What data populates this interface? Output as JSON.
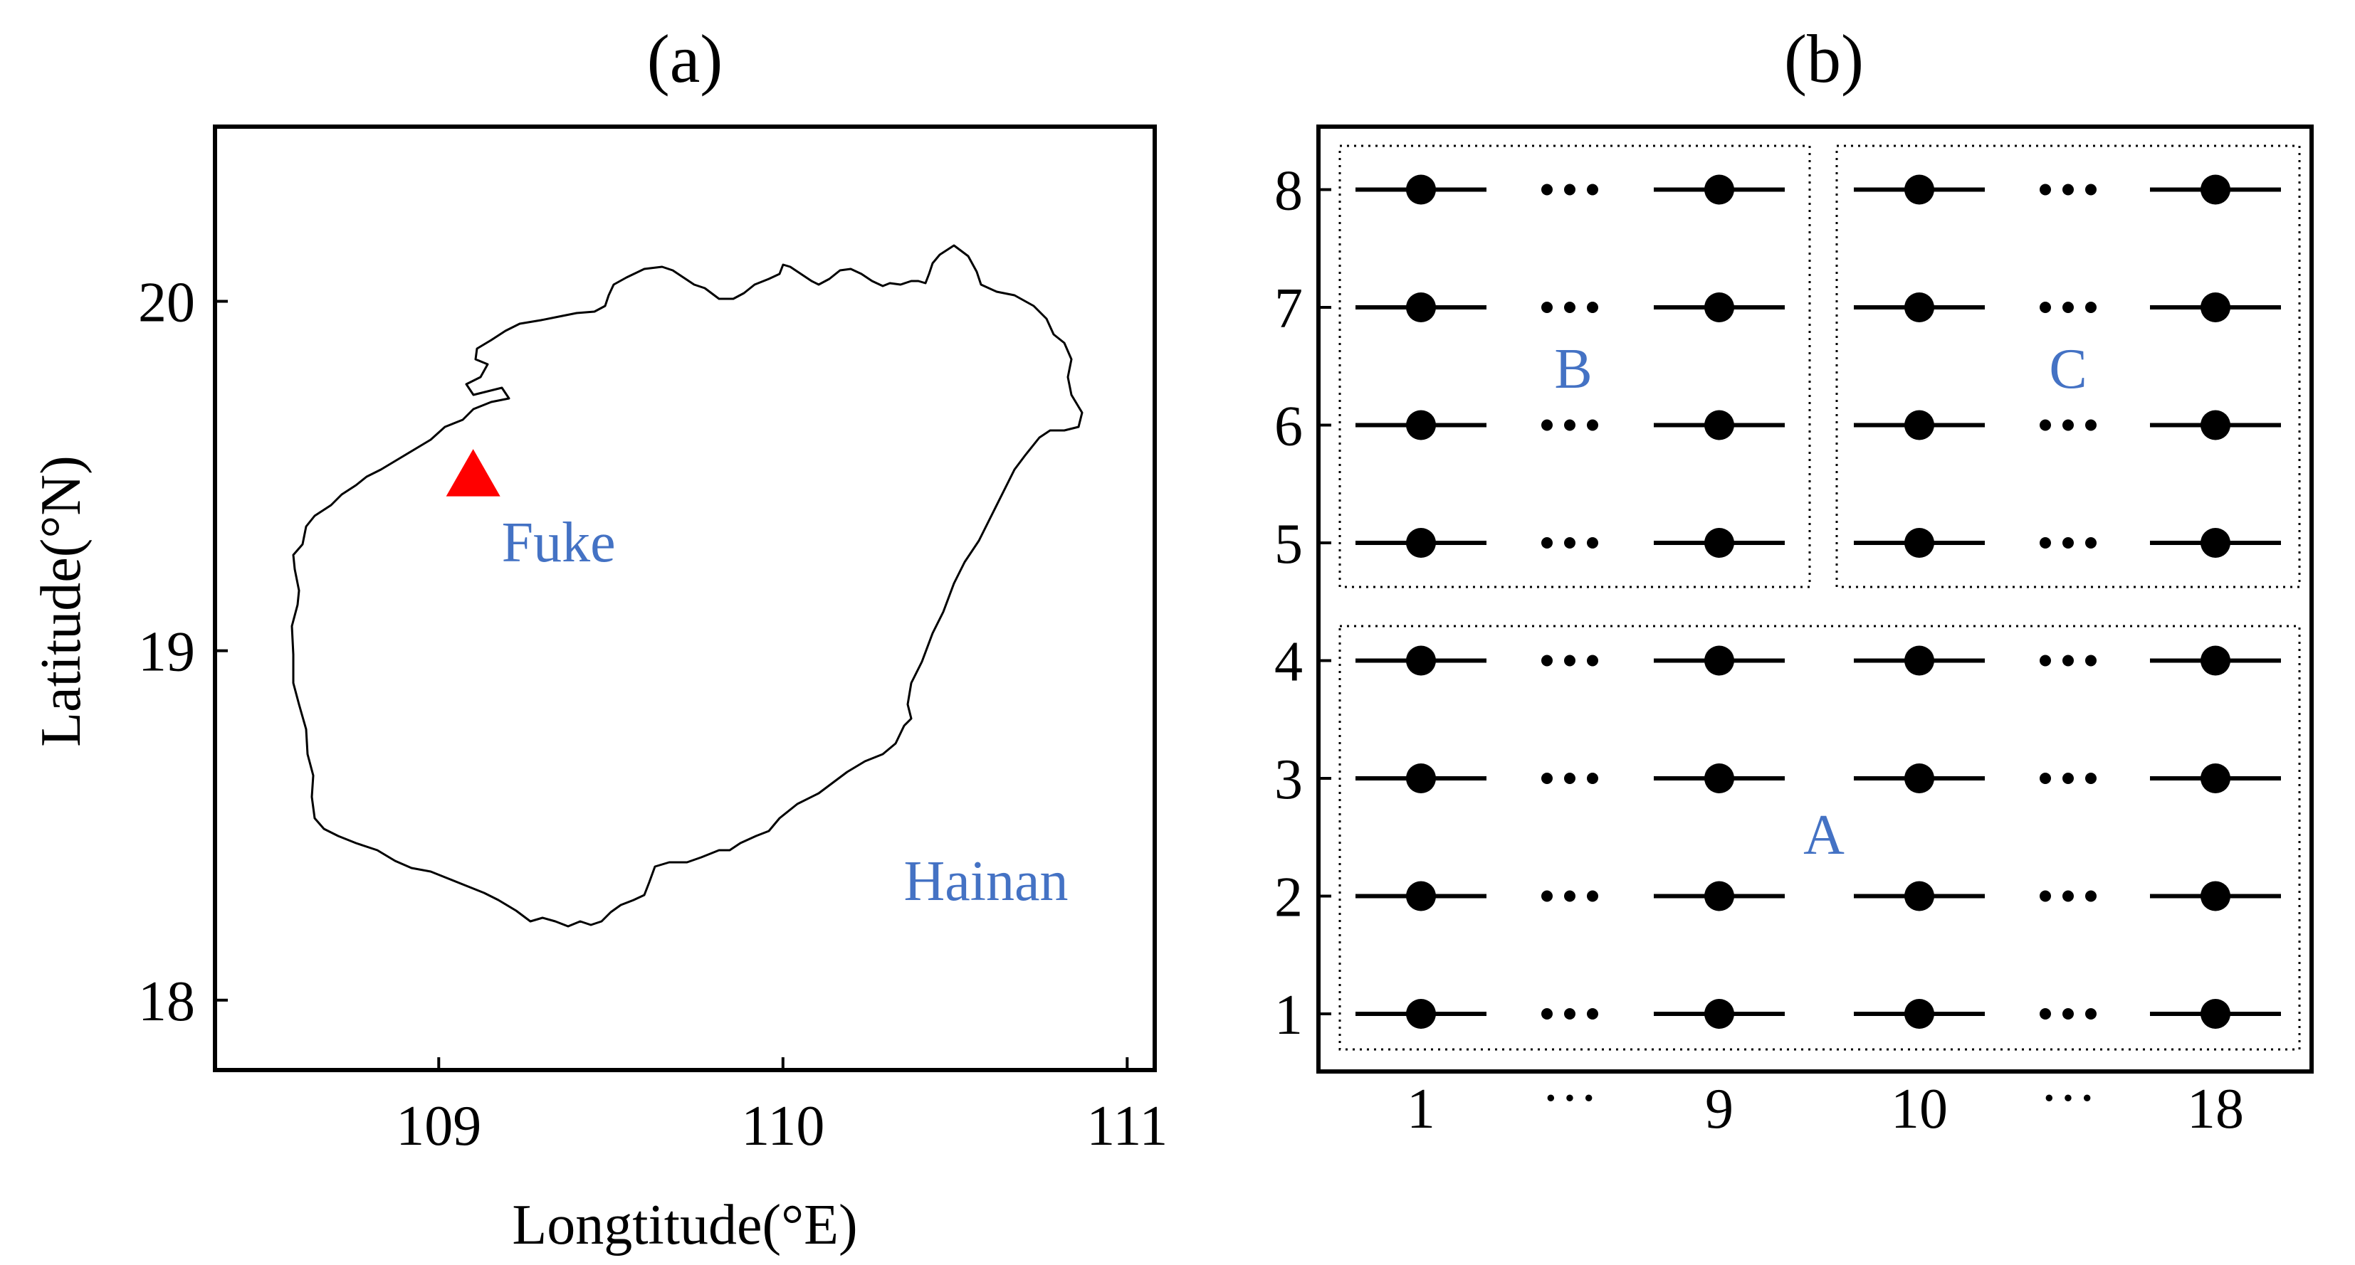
{
  "panel_a": {
    "title": "(a)",
    "x_axis_label": "Longtitude(°E)",
    "y_axis_label": "Latitude(°N)",
    "x_ticks": [
      {
        "value": 109,
        "label": "109"
      },
      {
        "value": 110,
        "label": "110"
      },
      {
        "value": 111,
        "label": "111"
      }
    ],
    "y_ticks": [
      {
        "value": 18,
        "label": "18"
      },
      {
        "value": 19,
        "label": "19"
      },
      {
        "value": 20,
        "label": "20"
      }
    ],
    "x_range": [
      108.35,
      111.08
    ],
    "y_range": [
      17.8,
      20.5
    ],
    "station": {
      "label": "Fuke",
      "lon": 109.1,
      "lat": 19.5
    },
    "region_label": "Hainan",
    "marker_color": "#ff0000",
    "label_color": "#4472c4"
  },
  "panel_b": {
    "title": "(b)",
    "x_tick_labels": [
      "1",
      "9",
      "10",
      "18"
    ],
    "y_tick_labels": [
      "1",
      "2",
      "3",
      "4",
      "5",
      "6",
      "7",
      "8"
    ],
    "ellipsis": "···",
    "groups": [
      {
        "label": "A",
        "columns": "1-18",
        "rows": "1-4"
      },
      {
        "label": "B",
        "columns": "1-9",
        "rows": "5-8"
      },
      {
        "label": "C",
        "columns": "10-18",
        "rows": "5-8"
      }
    ],
    "label_color": "#4472c4"
  }
}
